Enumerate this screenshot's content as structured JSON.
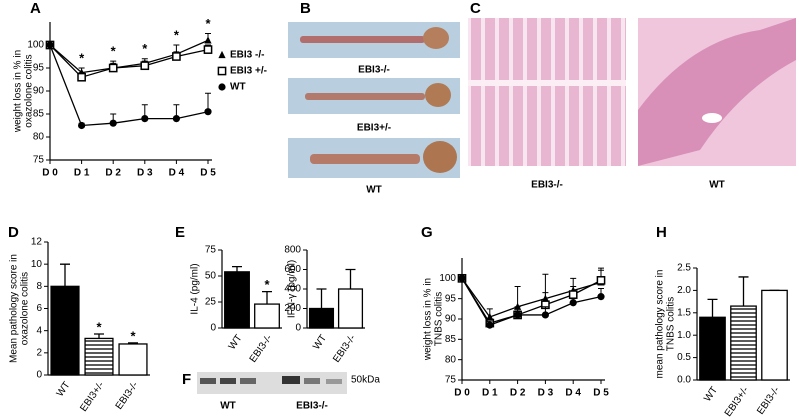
{
  "chart_data": [
    {
      "type": "line",
      "panel": "A",
      "y_label": [
        "weight loss in % in",
        "oxazolone colitis"
      ],
      "categories": [
        "D 0",
        "D 1",
        "D 2",
        "D 3",
        "D 4",
        "D 5"
      ],
      "ylim": [
        75,
        105
      ],
      "yticks": [
        75,
        80,
        85,
        90,
        95,
        100
      ],
      "series": [
        {
          "name": "EBI3 -/-",
          "marker": "triangle",
          "color": "#000000",
          "values": [
            100,
            94,
            95,
            96,
            98,
            101
          ],
          "errors": [
            0,
            1,
            1,
            1,
            2,
            1.5
          ]
        },
        {
          "name": "EBI3 +/-",
          "marker": "square",
          "color": "#000000",
          "values": [
            100,
            93,
            95,
            95.5,
            97.5,
            99
          ],
          "errors": [
            0,
            1,
            1.5,
            1,
            1,
            1
          ]
        },
        {
          "name": "WT",
          "marker": "circle",
          "color": "#000000",
          "values": [
            100,
            82.5,
            83,
            84,
            84,
            85.5
          ],
          "errors": [
            0,
            0.5,
            2,
            3,
            3,
            4
          ]
        }
      ],
      "significance": [
        null,
        "*",
        "*",
        "*",
        "*",
        "*"
      ],
      "legend": "right"
    },
    {
      "type": "bar",
      "panel": "D",
      "y_label": [
        "Mean pathology score in",
        "oxazolone colitis"
      ],
      "categories": [
        "WT",
        "EBI3+/-",
        "EBI3-/-"
      ],
      "values": [
        8,
        3.3,
        2.8
      ],
      "errors": [
        2,
        0.4,
        0.1
      ],
      "fills": [
        "black",
        "stripes",
        "white"
      ],
      "significance": [
        null,
        "*",
        "*"
      ],
      "ylim": [
        0,
        12
      ],
      "yticks": [
        0,
        2,
        4,
        6,
        8,
        10,
        12
      ]
    },
    {
      "type": "bar",
      "panel": "E",
      "y_label": [
        "IL-4 (pg/ml)"
      ],
      "categories": [
        "WT",
        "EBI3-/-"
      ],
      "values": [
        54,
        23
      ],
      "errors": [
        5,
        12
      ],
      "fills": [
        "black",
        "white"
      ],
      "significance": [
        null,
        "*"
      ],
      "ylim": [
        0,
        75
      ],
      "yticks": [
        0,
        25,
        50,
        75
      ]
    },
    {
      "type": "bar",
      "y_label": [
        "IFN-γ (pg/ml)"
      ],
      "categories": [
        "WT",
        "EBI3-/-"
      ],
      "values": [
        200,
        400
      ],
      "errors": [
        200,
        200
      ],
      "fills": [
        "black",
        "white"
      ],
      "ylim": [
        0,
        800
      ],
      "yticks": [
        0,
        200,
        400,
        600,
        800
      ]
    },
    {
      "type": "line",
      "panel": "G",
      "y_label": [
        "weight loss in % in",
        "TNBS colitis"
      ],
      "categories": [
        "D 0",
        "D 1",
        "D 2",
        "D 3",
        "D 4",
        "D 5"
      ],
      "ylim": [
        75,
        105
      ],
      "yticks": [
        75,
        80,
        85,
        90,
        95,
        100
      ],
      "series": [
        {
          "marker": "triangle",
          "color": "#000000",
          "values": [
            100,
            90.5,
            93,
            95,
            97,
            99
          ],
          "errors": [
            0,
            2,
            5,
            6,
            3,
            3
          ]
        },
        {
          "marker": "square",
          "color": "#000000",
          "values": [
            100,
            89,
            91,
            93.5,
            96,
            99.5
          ],
          "errors": [
            0,
            1,
            2,
            3,
            2,
            3
          ]
        },
        {
          "marker": "circle",
          "color": "#000000",
          "values": [
            100,
            88.5,
            91,
            91,
            94,
            95.5
          ],
          "errors": [
            0,
            1,
            1,
            2,
            1,
            2
          ]
        }
      ]
    },
    {
      "type": "bar",
      "panel": "H",
      "y_label": [
        "mean pathology score in",
        "TNBS colitis"
      ],
      "categories": [
        "WT",
        "EBI3+/-",
        "EBI3-/-"
      ],
      "values": [
        1.4,
        1.65,
        2.0
      ],
      "errors": [
        0.4,
        0.65,
        0
      ],
      "fills": [
        "black",
        "stripes",
        "white"
      ],
      "ylim": [
        0,
        2.5
      ],
      "yticks": [
        {
          "value": 0,
          "label": "0.0"
        },
        0.5,
        {
          "value": 1,
          "label": "1.0"
        },
        1.5,
        {
          "value": 2,
          "label": "2.0"
        },
        2.5
      ]
    }
  ],
  "figure": {
    "b": {
      "panel": "B",
      "labels": [
        "EBI3-/-",
        "EBI3+/-",
        "WT"
      ]
    },
    "c": {
      "panel": "C",
      "labels": [
        "EBI3-/-",
        "WT"
      ]
    },
    "f": {
      "panel": "F",
      "marker": "50kDa",
      "lanes": [
        "WT",
        "EBI3-/-"
      ]
    }
  }
}
